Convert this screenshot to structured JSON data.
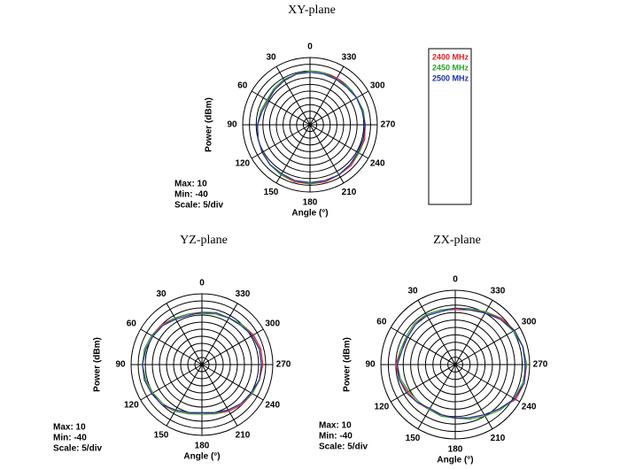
{
  "chart_data": [
    {
      "type": "polar",
      "title": "XY-plane",
      "x_label": "Angle (°)",
      "y_label": "Power (dBm)",
      "annotations": [
        "Max: 10",
        "Min: -40",
        "Scale: 5/div"
      ],
      "direction": "counterclockwise",
      "zero": "top",
      "legend": "right",
      "xticks": [
        0,
        30,
        60,
        90,
        120,
        150,
        180,
        210,
        240,
        270,
        300,
        330
      ],
      "ylim": [
        -40,
        10
      ],
      "yticks": [
        -40,
        -35,
        -30,
        -25,
        -20,
        -15,
        -10,
        -5,
        0,
        5,
        10
      ],
      "x": [
        0,
        15,
        30,
        45,
        60,
        75,
        90,
        105,
        120,
        135,
        150,
        165,
        180,
        195,
        210,
        225,
        240,
        255,
        270,
        285,
        300,
        315,
        330,
        345
      ],
      "series": [
        {
          "name": "2400 MHz",
          "color": "#e32020",
          "values": [
            0,
            -1,
            -2,
            -3,
            -3,
            -2,
            -1,
            0,
            1,
            2,
            3,
            4,
            4,
            4,
            3,
            3,
            2,
            2,
            1,
            1,
            0,
            0,
            0,
            0
          ]
        },
        {
          "name": "2450 MHz",
          "color": "#2ea02e",
          "values": [
            0,
            -1,
            -1,
            -2,
            -3,
            -2,
            -1,
            0,
            1,
            2,
            3,
            3,
            4,
            3,
            3,
            2,
            2,
            1,
            1,
            1,
            0,
            0,
            -1,
            0
          ]
        },
        {
          "name": "2500 MHz",
          "color": "#1f2fa0",
          "values": [
            -1,
            -1,
            -2,
            -3,
            -4,
            -3,
            -1,
            0,
            1,
            2,
            2,
            3,
            3,
            3,
            3,
            2,
            1,
            1,
            1,
            0,
            0,
            -1,
            -1,
            -1
          ]
        }
      ]
    },
    {
      "type": "polar",
      "title": "YZ-plane",
      "x_label": "Angle (°)",
      "y_label": "Power (dBm)",
      "annotations": [
        "Max: 10",
        "Min: -40",
        "Scale: 5/div"
      ],
      "direction": "counterclockwise",
      "zero": "top",
      "xticks": [
        0,
        30,
        60,
        90,
        120,
        150,
        180,
        210,
        240,
        270,
        300,
        330
      ],
      "ylim": [
        -40,
        10
      ],
      "yticks": [
        -40,
        -35,
        -30,
        -25,
        -20,
        -15,
        -10,
        -5,
        0,
        5,
        10
      ],
      "x": [
        0,
        15,
        30,
        45,
        60,
        75,
        90,
        105,
        120,
        135,
        150,
        165,
        180,
        195,
        210,
        225,
        240,
        255,
        270,
        285,
        300,
        315,
        330,
        345
      ],
      "series": [
        {
          "color": "#e32020",
          "values": [
            -3,
            -3,
            -2,
            0,
            1,
            2,
            2,
            2,
            1,
            0,
            -2,
            -4,
            -6,
            -4,
            -2,
            0,
            1,
            2,
            3,
            3,
            2,
            0,
            -2,
            -3
          ]
        },
        {
          "color": "#2ea02e",
          "values": [
            -4,
            -3,
            -2,
            -1,
            1,
            2,
            2,
            1,
            0,
            -1,
            -2,
            -4,
            -5,
            -4,
            -3,
            -1,
            1,
            2,
            2,
            2,
            1,
            0,
            -2,
            -3
          ]
        },
        {
          "color": "#1f2fa0",
          "values": [
            -3,
            -4,
            -3,
            -1,
            0,
            1,
            2,
            2,
            1,
            0,
            -3,
            -5,
            -6,
            -5,
            -3,
            -1,
            0,
            2,
            2,
            2,
            1,
            -1,
            -2,
            -2
          ]
        }
      ]
    },
    {
      "type": "polar",
      "title": "ZX-plane",
      "x_label": "Angle (°)",
      "y_label": "Power (dBm)",
      "annotations": [
        "Max: 10",
        "Min: -40",
        "Scale: 5/div"
      ],
      "direction": "counterclockwise",
      "zero": "top",
      "xticks": [
        0,
        30,
        60,
        90,
        120,
        150,
        180,
        210,
        240,
        270,
        300,
        330
      ],
      "ylim": [
        -40,
        10
      ],
      "yticks": [
        -40,
        -35,
        -30,
        -25,
        -20,
        -15,
        -10,
        -5,
        0,
        5,
        10
      ],
      "x": [
        0,
        15,
        30,
        45,
        60,
        75,
        90,
        105,
        120,
        135,
        150,
        165,
        180,
        195,
        210,
        225,
        240,
        255,
        270,
        285,
        300,
        315,
        330,
        345
      ],
      "series": [
        {
          "color": "#e32020",
          "values": [
            -3,
            -2,
            -1,
            -2,
            -3,
            -2,
            0,
            -1,
            -3,
            -4,
            -5,
            -5,
            -4,
            -3,
            -1,
            2,
            7,
            8,
            8,
            7,
            6,
            4,
            1,
            -2
          ]
        },
        {
          "color": "#2ea02e",
          "values": [
            -2,
            -2,
            -1,
            -1,
            -2,
            -2,
            -1,
            -2,
            -4,
            -5,
            -5,
            -4,
            -4,
            -2,
            0,
            3,
            6,
            7,
            8,
            7,
            5,
            3,
            1,
            -1
          ]
        },
        {
          "color": "#1f2fa0",
          "values": [
            -2,
            -3,
            -2,
            -2,
            -3,
            -3,
            -1,
            -1,
            -2,
            -4,
            -6,
            -5,
            -4,
            -3,
            -1,
            2,
            6,
            8,
            7,
            7,
            6,
            3,
            0,
            -2
          ]
        }
      ]
    }
  ]
}
